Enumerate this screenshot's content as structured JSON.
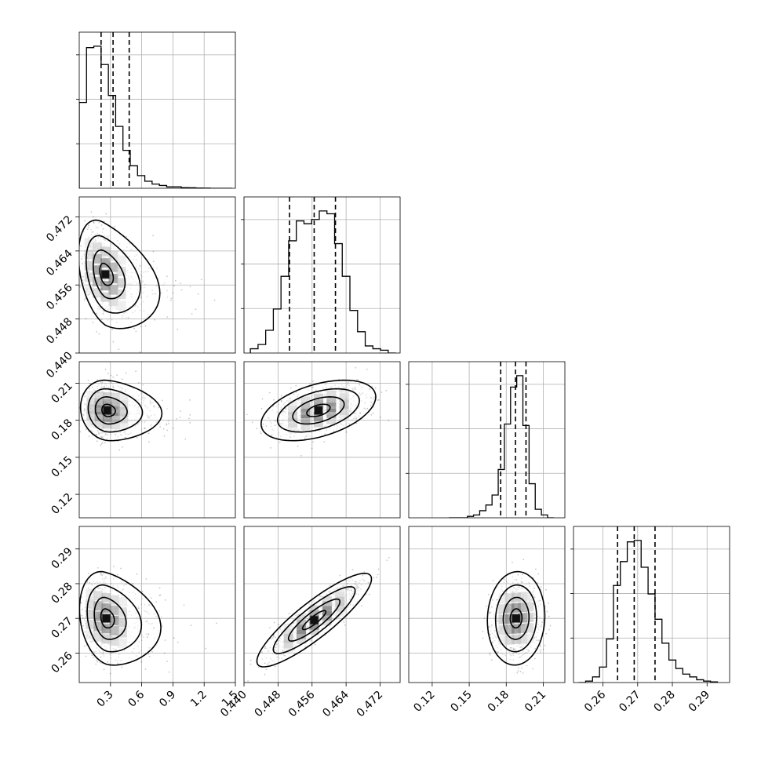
{
  "chart_data": {
    "type": "corner",
    "num_parameters": 4,
    "grid": true,
    "quantile_line_style": "dashed",
    "parameters": [
      {
        "range": [
          0.0,
          1.5
        ],
        "ticks": [
          0.3,
          0.6,
          0.9,
          1.2,
          1.5
        ],
        "tick_labels": [
          "0.3",
          "0.6",
          "0.9",
          "1.2",
          "1.5"
        ],
        "quantiles": [
          0.21,
          0.325,
          0.48
        ],
        "hist_edges": [
          0.0,
          0.07,
          0.14,
          0.21,
          0.28,
          0.35,
          0.42,
          0.49,
          0.56,
          0.63,
          0.7,
          0.77,
          0.84,
          0.91,
          0.98,
          1.05,
          1.12,
          1.19,
          1.26,
          1.33,
          1.4,
          1.47
        ],
        "hist_counts": [
          0.61,
          1.0,
          1.01,
          0.88,
          0.66,
          0.44,
          0.27,
          0.16,
          0.09,
          0.05,
          0.03,
          0.02,
          0.01,
          0.01,
          0.005,
          0.004,
          0.002,
          0.001,
          0.0,
          0.0,
          0.0
        ]
      },
      {
        "range": [
          0.44,
          0.4767
        ],
        "ticks": [
          0.44,
          0.448,
          0.456,
          0.464,
          0.472
        ],
        "tick_labels": [
          "0.440",
          "0.448",
          "0.456",
          "0.464",
          "0.472"
        ],
        "quantiles": [
          0.4507,
          0.4565,
          0.4615
        ],
        "hist_edges": [
          0.4415,
          0.4433,
          0.4451,
          0.4469,
          0.4487,
          0.4505,
          0.4523,
          0.4541,
          0.4559,
          0.4577,
          0.4595,
          0.4613,
          0.4631,
          0.4649,
          0.4667,
          0.4685,
          0.4703,
          0.4721,
          0.4739,
          0.4757
        ],
        "hist_counts": [
          0.03,
          0.06,
          0.16,
          0.31,
          0.54,
          0.79,
          0.93,
          0.91,
          0.94,
          1.0,
          0.98,
          0.77,
          0.54,
          0.3,
          0.15,
          0.05,
          0.03,
          0.02,
          0.0
        ]
      },
      {
        "range": [
          0.101,
          0.2275
        ],
        "ticks": [
          0.12,
          0.15,
          0.18,
          0.21
        ],
        "tick_labels": [
          "0.12",
          "0.15",
          "0.18",
          "0.21"
        ],
        "quantiles": [
          0.1755,
          0.1875,
          0.196
        ],
        "hist_edges": [
          0.1335,
          0.1385,
          0.1435,
          0.1485,
          0.1535,
          0.1585,
          0.1635,
          0.1685,
          0.1735,
          0.1785,
          0.1835,
          0.1885,
          0.1935,
          0.1985,
          0.2035,
          0.2085,
          0.2135,
          0.2185
        ],
        "hist_counts": [
          0.0,
          0.0,
          0.0,
          0.01,
          0.02,
          0.05,
          0.09,
          0.16,
          0.34,
          0.66,
          0.92,
          1.0,
          0.65,
          0.24,
          0.06,
          0.02,
          0.0
        ]
      },
      {
        "range": [
          0.2515,
          0.2965
        ],
        "ticks": [
          0.26,
          0.27,
          0.28,
          0.29
        ],
        "tick_labels": [
          "0.26",
          "0.27",
          "0.28",
          "0.29"
        ],
        "quantiles": [
          0.2642,
          0.269,
          0.275
        ],
        "hist_edges": [
          0.253,
          0.255,
          0.257,
          0.259,
          0.261,
          0.263,
          0.265,
          0.267,
          0.269,
          0.271,
          0.273,
          0.275,
          0.277,
          0.279,
          0.281,
          0.283,
          0.285,
          0.287,
          0.289,
          0.291,
          0.293
        ],
        "hist_counts": [
          0.0,
          0.01,
          0.04,
          0.11,
          0.31,
          0.69,
          0.86,
          1.0,
          1.01,
          0.82,
          0.63,
          0.45,
          0.28,
          0.16,
          0.1,
          0.06,
          0.04,
          0.02,
          0.01,
          0.005
        ]
      }
    ],
    "pairs": [
      {
        "x_param": 0,
        "y_param": 1,
        "center": [
          0.25,
          0.4585
        ],
        "sigma": [
          0.14,
          0.0052
        ],
        "rho": -0.35,
        "skew_x": 1.2
      },
      {
        "x_param": 0,
        "y_param": 2,
        "center": [
          0.27,
          0.188
        ],
        "sigma": [
          0.14,
          0.01
        ],
        "rho": -0.1,
        "skew_x": 1.2
      },
      {
        "x_param": 0,
        "y_param": 3,
        "center": [
          0.26,
          0.27
        ],
        "sigma": [
          0.14,
          0.0055
        ],
        "rho": -0.2,
        "skew_x": 1.2
      },
      {
        "x_param": 1,
        "y_param": 2,
        "center": [
          0.4575,
          0.188
        ],
        "sigma": [
          0.0055,
          0.01
        ],
        "rho": 0.45,
        "skew_x": 0
      },
      {
        "x_param": 1,
        "y_param": 3,
        "center": [
          0.4565,
          0.2695
        ],
        "sigma": [
          0.0055,
          0.0055
        ],
        "rho": 0.88,
        "skew_x": 0
      },
      {
        "x_param": 2,
        "y_param": 3,
        "center": [
          0.188,
          0.27
        ],
        "sigma": [
          0.0095,
          0.0055
        ],
        "rho": 0.05,
        "skew_x": 0
      }
    ]
  }
}
